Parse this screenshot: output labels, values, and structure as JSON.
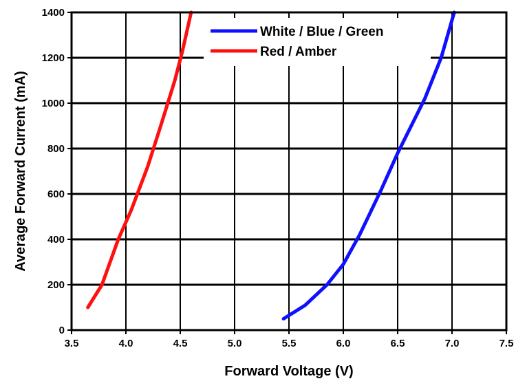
{
  "chart_data": {
    "type": "line",
    "title": "",
    "xlabel": "Forward Voltage (V)",
    "ylabel": "Average Forward Current (mA)",
    "xlim": [
      3.5,
      7.5
    ],
    "ylim": [
      0,
      1400
    ],
    "x_ticks": [
      "3.5",
      "4.0",
      "4.5",
      "5.0",
      "5.5",
      "6.0",
      "6.5",
      "7.0",
      "7.5"
    ],
    "y_ticks": [
      "0",
      "200",
      "400",
      "600",
      "800",
      "1000",
      "1200",
      "1400"
    ],
    "grid": true,
    "legend_position": "top-center",
    "series": [
      {
        "name": "White / Blue / Green",
        "color": "#1010ff",
        "points": [
          [
            5.45,
            50
          ],
          [
            5.65,
            110
          ],
          [
            5.85,
            200
          ],
          [
            6.0,
            290
          ],
          [
            6.15,
            420
          ],
          [
            6.35,
            620
          ],
          [
            6.5,
            780
          ],
          [
            6.75,
            1020
          ],
          [
            6.9,
            1200
          ],
          [
            7.02,
            1400
          ]
        ]
      },
      {
        "name": "Red / Amber",
        "color": "#ff1010",
        "points": [
          [
            3.65,
            100
          ],
          [
            3.78,
            200
          ],
          [
            3.93,
            400
          ],
          [
            4.05,
            530
          ],
          [
            4.2,
            720
          ],
          [
            4.32,
            900
          ],
          [
            4.45,
            1100
          ],
          [
            4.52,
            1230
          ],
          [
            4.6,
            1400
          ]
        ]
      }
    ]
  }
}
